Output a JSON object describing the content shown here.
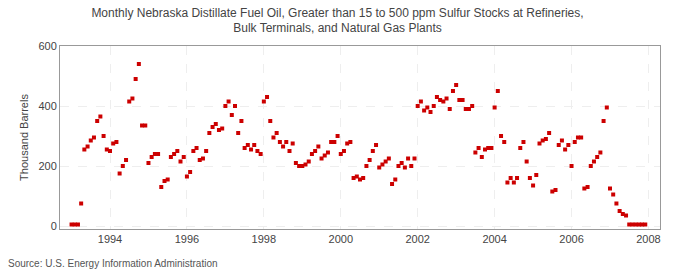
{
  "chart_data": {
    "type": "scatter",
    "title": "Monthly Nebraska Distillate Fuel Oil, Greater than 15 to 500 ppm Sulfur Stocks at Refineries,\nBulk Terminals, and Natural Gas Plants",
    "ylabel": "Thousand Barrels",
    "annotations": [
      "Source: U.S. Energy Information Administration"
    ],
    "color": "#cc0000",
    "marker": "square",
    "grid": true,
    "xlim": [
      1992.7,
      2008.3
    ],
    "xticks": [
      1994,
      1996,
      1998,
      2000,
      2002,
      2004,
      2006,
      2008
    ],
    "ylim": [
      -10,
      600
    ],
    "yticks": [
      0,
      200,
      400,
      600
    ],
    "x": [
      1993.0,
      1993.083,
      1993.167,
      1993.25,
      1993.333,
      1993.417,
      1993.5,
      1993.583,
      1993.667,
      1993.75,
      1993.833,
      1993.917,
      1994.0,
      1994.083,
      1994.167,
      1994.25,
      1994.333,
      1994.417,
      1994.5,
      1994.583,
      1994.667,
      1994.75,
      1994.833,
      1994.917,
      1995.0,
      1995.083,
      1995.167,
      1995.25,
      1995.333,
      1995.417,
      1995.5,
      1995.583,
      1995.667,
      1995.75,
      1995.833,
      1995.917,
      1996.0,
      1996.083,
      1996.167,
      1996.25,
      1996.333,
      1996.417,
      1996.5,
      1996.583,
      1996.667,
      1996.75,
      1996.833,
      1996.917,
      1997.0,
      1997.083,
      1997.167,
      1997.25,
      1997.333,
      1997.417,
      1997.5,
      1997.583,
      1997.667,
      1997.75,
      1997.833,
      1997.917,
      1998.0,
      1998.083,
      1998.167,
      1998.25,
      1998.333,
      1998.417,
      1998.5,
      1998.583,
      1998.667,
      1998.75,
      1998.833,
      1998.917,
      1999.0,
      1999.083,
      1999.167,
      1999.25,
      1999.333,
      1999.417,
      1999.5,
      1999.583,
      1999.667,
      1999.75,
      1999.833,
      1999.917,
      2000.0,
      2000.083,
      2000.167,
      2000.25,
      2000.333,
      2000.417,
      2000.5,
      2000.583,
      2000.667,
      2000.75,
      2000.833,
      2000.917,
      2001.0,
      2001.083,
      2001.167,
      2001.25,
      2001.333,
      2001.417,
      2001.5,
      2001.583,
      2001.667,
      2001.75,
      2001.833,
      2001.917,
      2002.0,
      2002.083,
      2002.167,
      2002.25,
      2002.333,
      2002.417,
      2002.5,
      2002.583,
      2002.667,
      2002.75,
      2002.833,
      2002.917,
      2003.0,
      2003.083,
      2003.167,
      2003.25,
      2003.333,
      2003.417,
      2003.5,
      2003.583,
      2003.667,
      2003.75,
      2003.833,
      2003.917,
      2004.0,
      2004.083,
      2004.167,
      2004.25,
      2004.333,
      2004.417,
      2004.5,
      2004.583,
      2004.667,
      2004.75,
      2004.833,
      2004.917,
      2005.0,
      2005.083,
      2005.167,
      2005.25,
      2005.333,
      2005.417,
      2005.5,
      2005.583,
      2005.667,
      2005.75,
      2005.833,
      2005.917,
      2006.0,
      2006.083,
      2006.167,
      2006.25,
      2006.333,
      2006.417,
      2006.5,
      2006.583,
      2006.667,
      2006.75,
      2006.833,
      2006.917,
      2007.0,
      2007.083,
      2007.167,
      2007.25,
      2007.333,
      2007.417,
      2007.5,
      2007.583,
      2007.667,
      2007.75,
      2007.833,
      2007.917
    ],
    "values": [
      5,
      5,
      5,
      75,
      255,
      265,
      285,
      295,
      350,
      365,
      300,
      255,
      250,
      275,
      280,
      175,
      200,
      220,
      415,
      425,
      490,
      540,
      335,
      335,
      210,
      230,
      240,
      240,
      130,
      150,
      155,
      230,
      240,
      250,
      215,
      230,
      165,
      180,
      250,
      260,
      220,
      225,
      250,
      310,
      330,
      340,
      320,
      325,
      400,
      415,
      370,
      400,
      310,
      350,
      260,
      270,
      255,
      270,
      250,
      240,
      415,
      430,
      350,
      295,
      310,
      280,
      265,
      280,
      250,
      275,
      210,
      200,
      200,
      205,
      215,
      240,
      250,
      265,
      225,
      235,
      245,
      280,
      280,
      300,
      240,
      250,
      275,
      280,
      160,
      165,
      155,
      160,
      200,
      220,
      250,
      270,
      195,
      205,
      215,
      225,
      140,
      155,
      200,
      210,
      195,
      225,
      200,
      225,
      400,
      415,
      385,
      395,
      380,
      400,
      430,
      420,
      415,
      425,
      390,
      450,
      470,
      420,
      420,
      390,
      390,
      400,
      245,
      260,
      230,
      255,
      260,
      260,
      395,
      450,
      300,
      280,
      145,
      160,
      145,
      160,
      260,
      280,
      215,
      160,
      135,
      170,
      275,
      285,
      290,
      310,
      115,
      120,
      270,
      285,
      255,
      270,
      200,
      280,
      295,
      295,
      125,
      130,
      200,
      215,
      230,
      245,
      350,
      395,
      125,
      105,
      75,
      50,
      40,
      35,
      5,
      5,
      5,
      5,
      5,
      5
    ]
  }
}
